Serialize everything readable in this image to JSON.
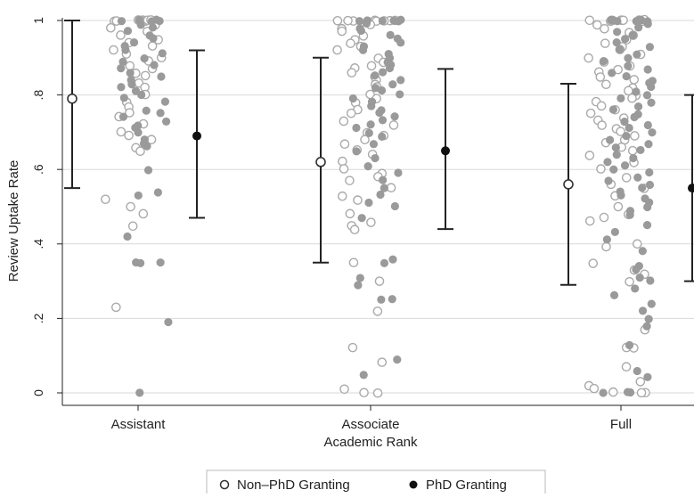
{
  "chart_data": {
    "type": "scatter",
    "title": "",
    "xlabel": "Academic Rank",
    "ylabel": "Review Uptake Rate",
    "categories": [
      "Assistant",
      "Associate",
      "Full"
    ],
    "ylim": [
      0,
      1
    ],
    "yticks": [
      0,
      0.2,
      0.4,
      0.6,
      0.8,
      1
    ],
    "ytick_labels": [
      "0",
      ".2",
      ".4",
      ".6",
      ".8",
      "1"
    ],
    "grid": true,
    "legend": {
      "placement": "bottom-center"
    },
    "series": [
      {
        "name": "Non–PhD Granting",
        "marker": "hollow-circle",
        "color": "#aaaaaa",
        "mean_color": "#333333",
        "estimates": [
          {
            "category": "Assistant",
            "mean": 0.79,
            "lower": 0.55,
            "upper": 1.0
          },
          {
            "category": "Associate",
            "mean": 0.62,
            "lower": 0.35,
            "upper": 0.9
          },
          {
            "category": "Full",
            "mean": 0.56,
            "lower": 0.29,
            "upper": 0.83
          }
        ],
        "points": [
          {
            "category": "Assistant",
            "values": [
              1,
              1,
              1,
              1,
              1,
              1,
              1,
              1,
              1,
              0.99,
              0.98,
              0.97,
              0.96,
              0.95,
              0.94,
              0.93,
              0.92,
              0.91,
              0.9,
              0.89,
              0.88,
              0.87,
              0.86,
              0.85,
              0.83,
              0.82,
              0.8,
              0.78,
              0.77,
              0.75,
              0.74,
              0.72,
              0.7,
              0.69,
              0.68,
              0.66,
              0.65,
              0.52,
              0.5,
              0.48,
              0.45,
              0.23
            ]
          },
          {
            "category": "Associate",
            "values": [
              1,
              1,
              1,
              1,
              1,
              1,
              1,
              1,
              0.99,
              0.98,
              0.97,
              0.96,
              0.95,
              0.94,
              0.93,
              0.92,
              0.9,
              0.89,
              0.88,
              0.87,
              0.86,
              0.85,
              0.84,
              0.83,
              0.82,
              0.8,
              0.79,
              0.78,
              0.76,
              0.75,
              0.73,
              0.72,
              0.7,
              0.69,
              0.68,
              0.67,
              0.65,
              0.64,
              0.62,
              0.6,
              0.59,
              0.58,
              0.57,
              0.55,
              0.53,
              0.52,
              0.48,
              0.46,
              0.45,
              0.44,
              0.35,
              0.3,
              0.22,
              0.12,
              0.08,
              0.01,
              0,
              0
            ]
          },
          {
            "category": "Full",
            "values": [
              1,
              1,
              1,
              1,
              1,
              1,
              1,
              1,
              1,
              1,
              0.99,
              0.98,
              0.97,
              0.96,
              0.95,
              0.94,
              0.93,
              0.92,
              0.91,
              0.9,
              0.89,
              0.88,
              0.87,
              0.86,
              0.85,
              0.84,
              0.83,
              0.82,
              0.81,
              0.8,
              0.79,
              0.78,
              0.77,
              0.76,
              0.75,
              0.74,
              0.73,
              0.72,
              0.71,
              0.7,
              0.69,
              0.68,
              0.67,
              0.66,
              0.65,
              0.64,
              0.62,
              0.6,
              0.58,
              0.56,
              0.55,
              0.53,
              0.5,
              0.48,
              0.47,
              0.46,
              0.4,
              0.39,
              0.35,
              0.33,
              0.32,
              0.3,
              0.17,
              0.12,
              0.12,
              0.07,
              0.03,
              0.02,
              0.01,
              0,
              0,
              0
            ]
          }
        ]
      },
      {
        "name": "PhD Granting",
        "marker": "filled-circle",
        "color": "#9a9a9a",
        "mean_color": "#111111",
        "estimates": [
          {
            "category": "Assistant",
            "mean": 0.69,
            "lower": 0.47,
            "upper": 0.92
          },
          {
            "category": "Associate",
            "mean": 0.65,
            "lower": 0.44,
            "upper": 0.87
          },
          {
            "category": "Full",
            "mean": 0.55,
            "lower": 0.3,
            "upper": 0.8
          }
        ],
        "points": [
          {
            "category": "Assistant",
            "values": [
              1,
              1,
              1,
              1,
              1,
              0.99,
              0.98,
              0.97,
              0.96,
              0.95,
              0.94,
              0.93,
              0.92,
              0.91,
              0.9,
              0.89,
              0.88,
              0.87,
              0.86,
              0.85,
              0.84,
              0.83,
              0.82,
              0.81,
              0.8,
              0.79,
              0.78,
              0.76,
              0.75,
              0.74,
              0.73,
              0.72,
              0.71,
              0.7,
              0.68,
              0.67,
              0.66,
              0.6,
              0.54,
              0.53,
              0.42,
              0.35,
              0.35,
              0.35,
              0.19,
              0
            ]
          },
          {
            "category": "Associate",
            "values": [
              1,
              1,
              1,
              1,
              1,
              1,
              0.99,
              0.98,
              0.97,
              0.96,
              0.95,
              0.94,
              0.93,
              0.92,
              0.91,
              0.9,
              0.89,
              0.88,
              0.87,
              0.86,
              0.85,
              0.84,
              0.83,
              0.82,
              0.81,
              0.8,
              0.79,
              0.78,
              0.77,
              0.76,
              0.75,
              0.74,
              0.73,
              0.72,
              0.71,
              0.7,
              0.69,
              0.67,
              0.65,
              0.63,
              0.61,
              0.59,
              0.57,
              0.55,
              0.53,
              0.51,
              0.5,
              0.47,
              0.36,
              0.35,
              0.31,
              0.29,
              0.25,
              0.25,
              0.09,
              0.05
            ]
          },
          {
            "category": "Full",
            "values": [
              1,
              1,
              1,
              1,
              1,
              1,
              1,
              0.99,
              0.98,
              0.97,
              0.96,
              0.95,
              0.94,
              0.93,
              0.92,
              0.91,
              0.9,
              0.89,
              0.88,
              0.87,
              0.86,
              0.85,
              0.84,
              0.83,
              0.82,
              0.81,
              0.8,
              0.79,
              0.78,
              0.77,
              0.76,
              0.75,
              0.74,
              0.73,
              0.72,
              0.71,
              0.7,
              0.69,
              0.68,
              0.67,
              0.66,
              0.65,
              0.64,
              0.63,
              0.62,
              0.61,
              0.6,
              0.59,
              0.58,
              0.57,
              0.56,
              0.55,
              0.54,
              0.53,
              0.52,
              0.51,
              0.5,
              0.49,
              0.48,
              0.45,
              0.43,
              0.41,
              0.38,
              0.34,
              0.33,
              0.31,
              0.3,
              0.28,
              0.26,
              0.24,
              0.22,
              0.2,
              0.18,
              0.13,
              0.06,
              0.04,
              0,
              0,
              0
            ]
          }
        ]
      }
    ]
  }
}
